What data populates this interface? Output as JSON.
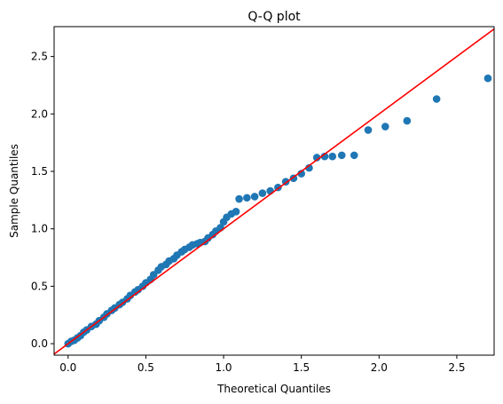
{
  "chart_data": {
    "type": "scatter",
    "title": "Q-Q plot",
    "xlabel": "Theoretical Quantiles",
    "ylabel": "Sample Quantiles",
    "xlim": [
      -0.09,
      2.74
    ],
    "ylim": [
      -0.1,
      2.76
    ],
    "xticks": [
      0.0,
      0.5,
      1.0,
      1.5,
      2.0,
      2.5
    ],
    "xtick_labels": [
      "0.0",
      "0.5",
      "1.0",
      "1.5",
      "2.0",
      "2.5"
    ],
    "yticks": [
      0.0,
      0.5,
      1.0,
      1.5,
      2.0,
      2.5
    ],
    "ytick_labels": [
      "0.0",
      "0.5",
      "1.0",
      "1.5",
      "2.0",
      "2.5"
    ],
    "grid": false,
    "point_color": "#1f77b4",
    "reference_line": {
      "type": "45-degree",
      "color": "#ff0000"
    },
    "series": [
      {
        "points": [
          [
            0.0,
            0.0
          ],
          [
            0.02,
            0.02
          ],
          [
            0.04,
            0.03
          ],
          [
            0.06,
            0.05
          ],
          [
            0.08,
            0.07
          ],
          [
            0.1,
            0.1
          ],
          [
            0.12,
            0.12
          ],
          [
            0.15,
            0.15
          ],
          [
            0.18,
            0.17
          ],
          [
            0.2,
            0.2
          ],
          [
            0.23,
            0.23
          ],
          [
            0.25,
            0.26
          ],
          [
            0.28,
            0.29
          ],
          [
            0.3,
            0.31
          ],
          [
            0.33,
            0.34
          ],
          [
            0.35,
            0.36
          ],
          [
            0.38,
            0.39
          ],
          [
            0.4,
            0.42
          ],
          [
            0.43,
            0.45
          ],
          [
            0.45,
            0.47
          ],
          [
            0.48,
            0.5
          ],
          [
            0.5,
            0.53
          ],
          [
            0.53,
            0.56
          ],
          [
            0.55,
            0.6
          ],
          [
            0.58,
            0.64
          ],
          [
            0.6,
            0.67
          ],
          [
            0.63,
            0.69
          ],
          [
            0.65,
            0.72
          ],
          [
            0.68,
            0.74
          ],
          [
            0.7,
            0.77
          ],
          [
            0.73,
            0.8
          ],
          [
            0.75,
            0.82
          ],
          [
            0.78,
            0.84
          ],
          [
            0.8,
            0.86
          ],
          [
            0.83,
            0.87
          ],
          [
            0.85,
            0.88
          ],
          [
            0.88,
            0.89
          ],
          [
            0.9,
            0.92
          ],
          [
            0.93,
            0.95
          ],
          [
            0.95,
            0.98
          ],
          [
            0.98,
            1.01
          ],
          [
            1.0,
            1.06
          ],
          [
            1.02,
            1.1
          ],
          [
            1.05,
            1.13
          ],
          [
            1.08,
            1.15
          ],
          [
            1.1,
            1.26
          ],
          [
            1.15,
            1.27
          ],
          [
            1.2,
            1.28
          ],
          [
            1.25,
            1.31
          ],
          [
            1.3,
            1.33
          ],
          [
            1.35,
            1.36
          ],
          [
            1.4,
            1.41
          ],
          [
            1.45,
            1.44
          ],
          [
            1.5,
            1.48
          ],
          [
            1.55,
            1.53
          ],
          [
            1.6,
            1.62
          ],
          [
            1.65,
            1.63
          ],
          [
            1.7,
            1.63
          ],
          [
            1.76,
            1.64
          ],
          [
            1.84,
            1.64
          ],
          [
            1.93,
            1.86
          ],
          [
            2.04,
            1.89
          ],
          [
            2.18,
            1.94
          ],
          [
            2.37,
            2.13
          ],
          [
            2.7,
            2.31
          ]
        ]
      }
    ]
  }
}
